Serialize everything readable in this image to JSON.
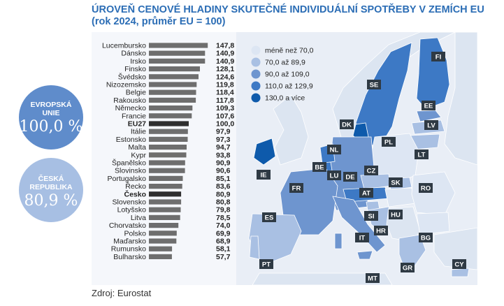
{
  "title": "ÚROVEŇ CENOVÉ HLADINY SKUTEČNÉ INDIVIDUÁLNÍ SPOTŘEBY V ZEMÍCH EU",
  "subtitle": "(rok 2024, průměr EU = 100)",
  "source": "Zdroj: Eurostat",
  "callouts": [
    {
      "label_line1": "EVROPSKÁ",
      "label_line2": "UNIE",
      "value": "100,0 %"
    },
    {
      "label_line1": "ČESKÁ",
      "label_line2": "REPUBLIKA",
      "value": "80,9 %"
    }
  ],
  "colors": {
    "title": "#2b6db5",
    "bar": "#6e6e6e",
    "bar_highlight": "#2f2f2f",
    "bin1": "#dde6f3",
    "bin2": "#a9c0e3",
    "bin3": "#6e95cf",
    "bin4": "#3d79c5",
    "bin5": "#0e5aab"
  },
  "legend": [
    {
      "label": "méně než 70,0",
      "color": "#dde6f3"
    },
    {
      "label": "70,0 až 89,9",
      "color": "#a9c0e3"
    },
    {
      "label": "90,0 až 109,0",
      "color": "#6e95cf"
    },
    {
      "label": "110,0 až 129,9",
      "color": "#3d79c5"
    },
    {
      "label": "130,0 a více",
      "color": "#0e5aab"
    }
  ],
  "map_labels": [
    "FI",
    "SE",
    "EE",
    "LV",
    "DK",
    "LT",
    "PL",
    "NL",
    "IE",
    "BE",
    "LU",
    "DE",
    "CZ",
    "SK",
    "RO",
    "FR",
    "AT",
    "HU",
    "SI",
    "ES",
    "HR",
    "IT",
    "BG",
    "PT",
    "GR",
    "MT",
    "CY"
  ],
  "chart_data": {
    "type": "bar",
    "orientation": "horizontal",
    "title": "ÚROVEŇ CENOVÉ HLADINY SKUTEČNÉ INDIVIDUÁLNÍ SPOTŘEBY V ZEMÍCH EU",
    "subtitle": "(rok 2024, průměr EU = 100)",
    "categories": [
      "Lucembursko",
      "Dánsko",
      "Irsko",
      "Finsko",
      "Švédsko",
      "Nizozemsko",
      "Belgie",
      "Rakousko",
      "Německo",
      "Francie",
      "EU27",
      "Itálie",
      "Estonsko",
      "Malta",
      "Kypr",
      "Španělsko",
      "Slovinsko",
      "Portugalsko",
      "Řecko",
      "Česko",
      "Slovensko",
      "Lotyšsko",
      "Litva",
      "Chorvatsko",
      "Polsko",
      "Maďarsko",
      "Rumunsko",
      "Bulharsko"
    ],
    "value_labels": [
      "147,8",
      "140,9",
      "140,9",
      "128,1",
      "124,6",
      "119,8",
      "118,4",
      "117,8",
      "109,3",
      "107,6",
      "100,0",
      "97,9",
      "97,3",
      "94,7",
      "93,8",
      "90,9",
      "90,6",
      "85,1",
      "83,6",
      "80,9",
      "80,8",
      "79,8",
      "78,5",
      "74,0",
      "69,9",
      "68,9",
      "58,1",
      "57,7"
    ],
    "values": [
      147.8,
      140.9,
      140.9,
      128.1,
      124.6,
      119.8,
      118.4,
      117.8,
      109.3,
      107.6,
      100.0,
      97.9,
      97.3,
      94.7,
      93.8,
      90.9,
      90.6,
      85.1,
      83.6,
      80.9,
      80.8,
      79.8,
      78.5,
      74.0,
      69.9,
      68.9,
      58.1,
      57.7
    ],
    "highlighted": [
      "EU27",
      "Česko"
    ],
    "grid": false
  }
}
